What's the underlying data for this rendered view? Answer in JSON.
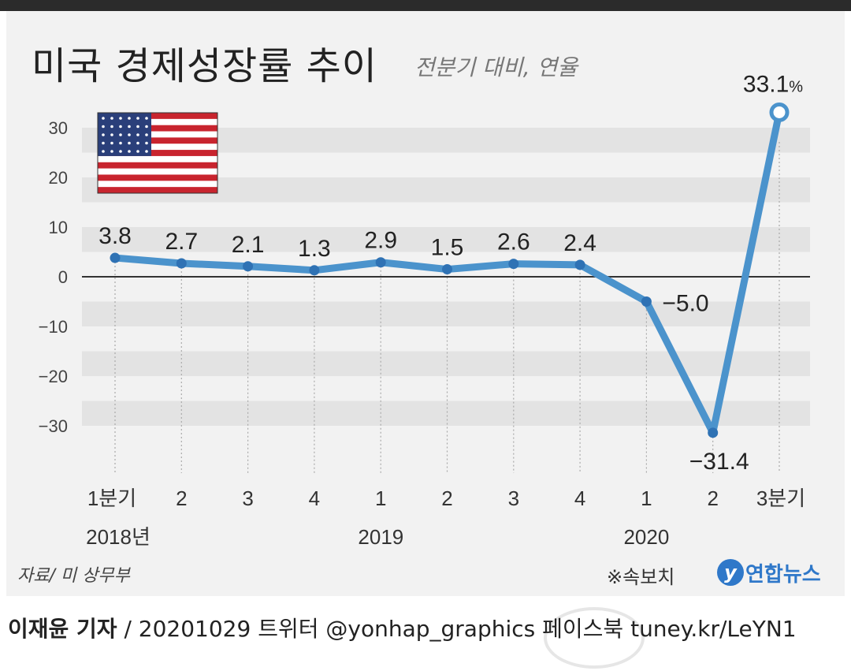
{
  "title": "미국 경제성장률 추이",
  "subtitle": "전분기 대비, 연율",
  "source": "자료/ 미 상무부",
  "note": "※속보치",
  "brand": {
    "icon": "y",
    "name": "연합뉴스"
  },
  "footer": {
    "reporter": "이재윤 기자",
    "rest": " / 20201029  트위터 @yonhap_graphics  페이스북 tuney.kr/LeYN1"
  },
  "colors": {
    "line": "#4b93cc",
    "band": "#e3e3e3",
    "background": "#f2f2f2"
  },
  "flag_icon": "us-flag-icon",
  "chart_data": {
    "type": "line",
    "title": "미국 경제성장률 추이",
    "subtitle": "전분기 대비, 연율",
    "xlabel": "",
    "ylabel": "",
    "ylim": [
      -35,
      35
    ],
    "yticks": [
      "30",
      "20",
      "10",
      "0",
      "−10",
      "−20",
      "−30"
    ],
    "grid": "horizontal bands",
    "categories": [
      "1분기",
      "2",
      "3",
      "4",
      "1",
      "2",
      "3",
      "4",
      "1",
      "2",
      "3분기"
    ],
    "years": [
      {
        "label": "2018년",
        "at_category": 0
      },
      {
        "label": "2019",
        "at_category": 4
      },
      {
        "label": "2020",
        "at_category": 9
      }
    ],
    "values": [
      3.8,
      2.7,
      2.1,
      1.3,
      2.9,
      1.5,
      2.6,
      2.4,
      -5.0,
      -31.4,
      33.1
    ],
    "data_labels": [
      "3.8",
      "2.7",
      "2.1",
      "1.3",
      "2.9",
      "1.5",
      "2.6",
      "2.4",
      "−5.0",
      "−31.4",
      "33.1"
    ],
    "unit": "%",
    "highlight_last": true
  }
}
